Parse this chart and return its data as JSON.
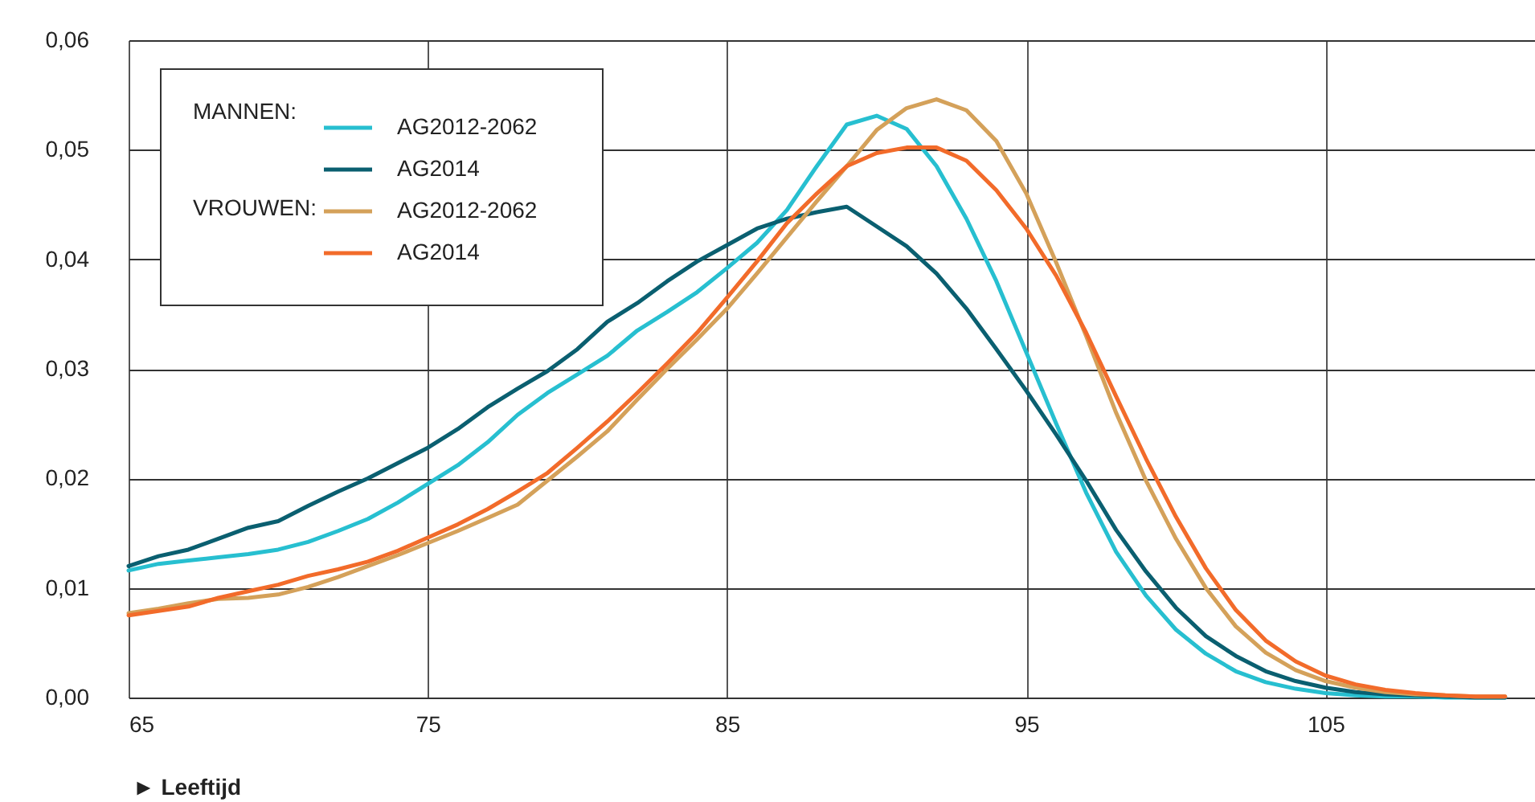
{
  "chart_data": {
    "type": "line",
    "xlabel": "► Leeftijd",
    "x": [
      65,
      66,
      67,
      68,
      69,
      70,
      71,
      72,
      73,
      74,
      75,
      76,
      77,
      78,
      79,
      80,
      81,
      82,
      83,
      84,
      85,
      86,
      87,
      88,
      89,
      90,
      91,
      92,
      93,
      94,
      95,
      96,
      97,
      98,
      99,
      100,
      101,
      102,
      103,
      104,
      105,
      106,
      107,
      108,
      109,
      110,
      111
    ],
    "series": [
      {
        "name": "AG2012-2062",
        "color": "#27bfd0",
        "values": [
          0.0116,
          0.0122,
          0.0125,
          0.0128,
          0.0131,
          0.0135,
          0.0142,
          0.0152,
          0.0163,
          0.0178,
          0.0195,
          0.0212,
          0.0233,
          0.0258,
          0.0278,
          0.0295,
          0.0312,
          0.0335,
          0.0352,
          0.037,
          0.0392,
          0.0415,
          0.0445,
          0.0485,
          0.0523,
          0.0531,
          0.0519,
          0.0485,
          0.0437,
          0.038,
          0.0315,
          0.025,
          0.0187,
          0.0133,
          0.0093,
          0.0062,
          0.004,
          0.0024,
          0.0014,
          0.0008,
          0.0004,
          0.0002,
          0.0001,
          0.0001,
          0,
          0,
          0
        ]
      },
      {
        "name": "AG2014",
        "color": "#0a5f70",
        "values": [
          0.012,
          0.0129,
          0.0135,
          0.0145,
          0.0155,
          0.0161,
          0.0175,
          0.0188,
          0.02,
          0.0214,
          0.0228,
          0.0245,
          0.0265,
          0.0282,
          0.0298,
          0.0318,
          0.0343,
          0.036,
          0.038,
          0.0398,
          0.0413,
          0.0428,
          0.0437,
          0.0443,
          0.0448,
          0.043,
          0.0412,
          0.0387,
          0.0355,
          0.0318,
          0.028,
          0.024,
          0.0198,
          0.0153,
          0.0115,
          0.0082,
          0.0056,
          0.0038,
          0.0024,
          0.0015,
          0.0009,
          0.0005,
          0.0003,
          0.0002,
          0.0001,
          0,
          0
        ]
      },
      {
        "name": "AG2012-2062",
        "color": "#d4a15a",
        "values": [
          0.0077,
          0.0081,
          0.0086,
          0.009,
          0.0091,
          0.0094,
          0.0101,
          0.011,
          0.012,
          0.013,
          0.0141,
          0.0152,
          0.0164,
          0.0176,
          0.0198,
          0.022,
          0.0243,
          0.0272,
          0.03,
          0.0327,
          0.0355,
          0.0387,
          0.042,
          0.0453,
          0.0485,
          0.0518,
          0.0538,
          0.0546,
          0.0536,
          0.0508,
          0.046,
          0.0397,
          0.033,
          0.026,
          0.0198,
          0.0145,
          0.01,
          0.0065,
          0.0041,
          0.0025,
          0.0015,
          0.0009,
          0.0005,
          0.0003,
          0.0002,
          0.0001,
          0.0001
        ]
      },
      {
        "name": "AG2014",
        "color": "#f26b2a",
        "values": [
          0.0075,
          0.0079,
          0.0083,
          0.0091,
          0.0097,
          0.0103,
          0.0111,
          0.0117,
          0.0124,
          0.0134,
          0.0146,
          0.0158,
          0.0172,
          0.0188,
          0.0205,
          0.0228,
          0.0252,
          0.0278,
          0.0305,
          0.0333,
          0.0365,
          0.0398,
          0.0433,
          0.046,
          0.0485,
          0.0497,
          0.0502,
          0.0502,
          0.049,
          0.0463,
          0.0428,
          0.0385,
          0.0333,
          0.0275,
          0.0218,
          0.0165,
          0.0118,
          0.008,
          0.0052,
          0.0033,
          0.002,
          0.0012,
          0.0007,
          0.0004,
          0.0002,
          0.0001,
          0.0001
        ]
      }
    ],
    "xlim": [
      65,
      112
    ],
    "xticks": [
      65,
      75,
      85,
      95,
      105
    ],
    "ylim": [
      0,
      0.06
    ],
    "yticks": [
      {
        "value": 0,
        "label": "0,00"
      },
      {
        "value": 0.01,
        "label": "0,01"
      },
      {
        "value": 0.02,
        "label": "0,02"
      },
      {
        "value": 0.03,
        "label": "0,03"
      },
      {
        "value": 0.04,
        "label": "0,04"
      },
      {
        "value": 0.05,
        "label": "0,05"
      },
      {
        "value": 0.06,
        "label": "0,06"
      }
    ],
    "annotations": [
      "MANNEN:",
      "VROUWEN:"
    ],
    "grid": true,
    "legend": "top left",
    "line_style": "solid"
  }
}
